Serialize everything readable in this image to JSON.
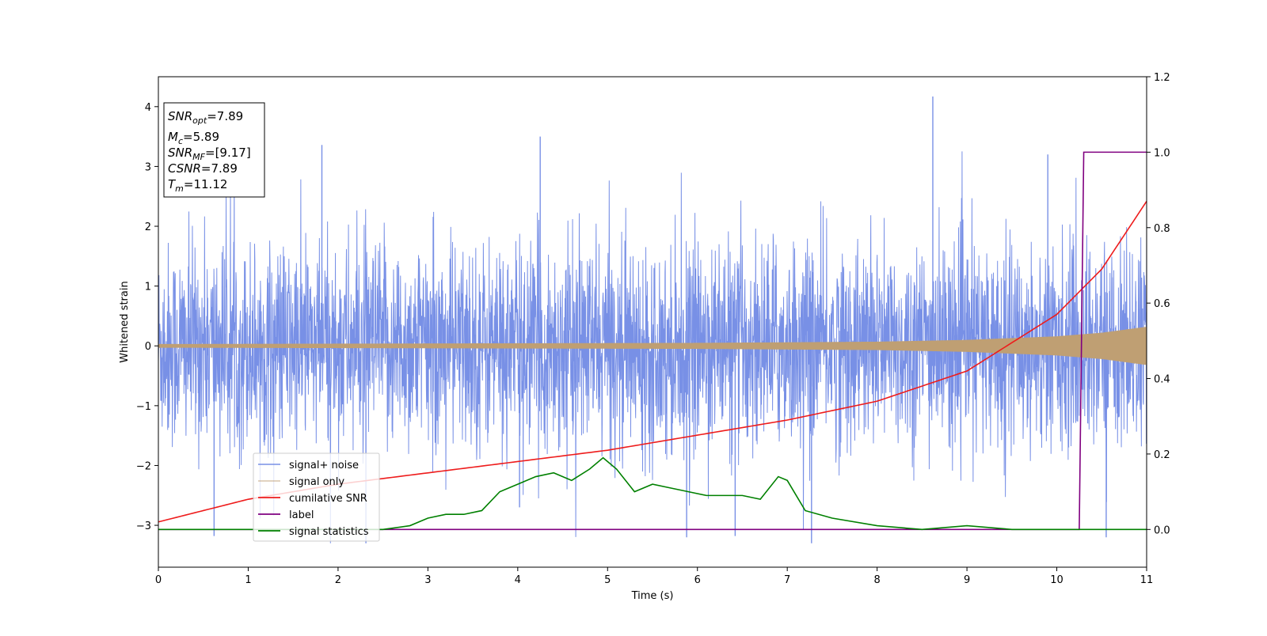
{
  "chart_data": {
    "type": "line",
    "xlabel": "Time (s)",
    "ylabel": "Whitened strain",
    "xlim": [
      0,
      11
    ],
    "ylim": [
      -3.7,
      4.5
    ],
    "y2lim": [
      -0.1,
      1.2
    ],
    "xticks": [
      "0",
      "1",
      "2",
      "3",
      "4",
      "5",
      "6",
      "7",
      "8",
      "9",
      "10",
      "11"
    ],
    "yticks": [
      "−3",
      "−2",
      "−1",
      "0",
      "1",
      "2",
      "3",
      "4"
    ],
    "y2ticks": [
      "0.0",
      "0.2",
      "0.4",
      "0.6",
      "0.8",
      "1.0",
      "1.2"
    ],
    "grid": false,
    "legend_placement": "lower-left",
    "colors": {
      "signal_noise": "#7890e6",
      "signal_only": "#bf9f73",
      "cumulative_snr": "#ee1c1c",
      "label": "#800080",
      "signal_statistics": "#008000"
    },
    "series": [
      {
        "name": "signal+ noise",
        "axis": "left",
        "description_values": "noise band approx ±1.7 with spikes up to 4.17 at x≈8.62 and down to -3.3 at x≈7.27"
      },
      {
        "name": "signal only",
        "axis": "left",
        "envelope": {
          "x": [
            0,
            3,
            6,
            8,
            9,
            10,
            10.5,
            11
          ],
          "amp": [
            0.03,
            0.04,
            0.05,
            0.07,
            0.1,
            0.16,
            0.22,
            0.32
          ]
        }
      },
      {
        "name": "cumilative SNR",
        "axis": "right",
        "x": [
          0,
          1,
          2,
          3,
          4,
          5,
          6,
          7,
          8,
          9,
          10,
          10.5,
          11
        ],
        "y": [
          0.02,
          0.08,
          0.12,
          0.15,
          0.18,
          0.21,
          0.25,
          0.29,
          0.34,
          0.42,
          0.57,
          0.69,
          0.87
        ]
      },
      {
        "name": "label",
        "axis": "right",
        "x": [
          0,
          10.25,
          10.3,
          11
        ],
        "y": [
          0,
          0,
          1,
          1
        ]
      },
      {
        "name": "signal statistics",
        "axis": "right",
        "x": [
          0,
          2.5,
          2.8,
          3.0,
          3.2,
          3.4,
          3.6,
          3.8,
          4.0,
          4.2,
          4.4,
          4.6,
          4.8,
          4.95,
          5.1,
          5.3,
          5.5,
          5.7,
          5.9,
          6.1,
          6.3,
          6.5,
          6.7,
          6.9,
          7.0,
          7.2,
          7.5,
          8.0,
          8.5,
          9.0,
          9.5,
          10.0,
          11.0
        ],
        "y": [
          0,
          0.0,
          0.01,
          0.03,
          0.04,
          0.04,
          0.05,
          0.1,
          0.12,
          0.14,
          0.15,
          0.13,
          0.16,
          0.19,
          0.16,
          0.1,
          0.12,
          0.11,
          0.1,
          0.09,
          0.09,
          0.09,
          0.08,
          0.14,
          0.13,
          0.05,
          0.03,
          0.01,
          0.0,
          0.01,
          0.0,
          0.0,
          0.0
        ]
      }
    ],
    "legend": [
      "signal+ noise",
      "signal only",
      "cumilative SNR",
      "label",
      "signal statistics"
    ]
  },
  "info_box": {
    "snr_opt": {
      "base": "SNR",
      "sub": "opt",
      "value": "=7.89"
    },
    "mc": {
      "base": "M",
      "sub": "c",
      "value": "=5.89"
    },
    "snr_mf": {
      "base": "SNR",
      "sub": "MF",
      "value": "=[9.17]"
    },
    "csnr": {
      "base": "CSNR",
      "value": "=7.89"
    },
    "tm": {
      "base": "T",
      "sub": "m",
      "value": "=11.12"
    }
  }
}
